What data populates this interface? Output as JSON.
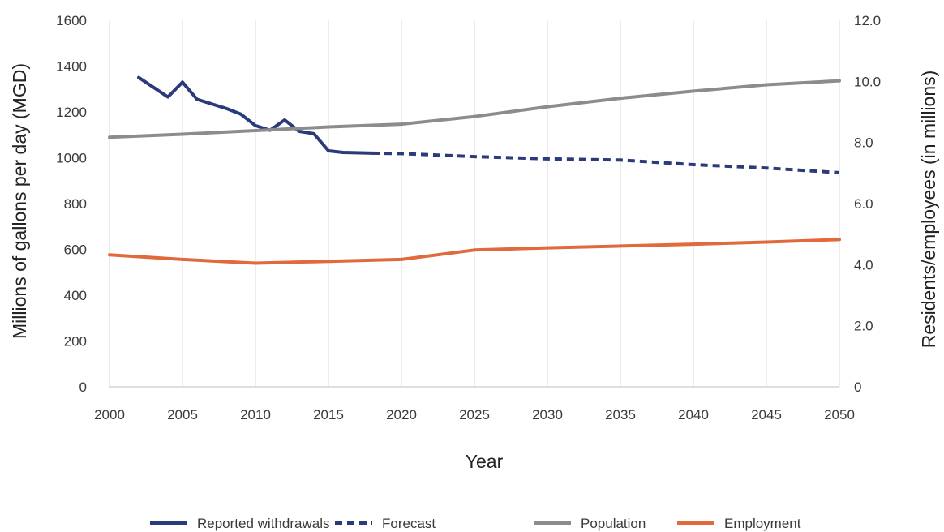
{
  "chart_data": {
    "type": "line",
    "xlabel": "Year",
    "ylabel_left": "Millions of gallons per day (MGD)",
    "ylabel_right": "Residents/employees (in millions)",
    "xlim": [
      2000,
      2050
    ],
    "ylim_left": [
      0,
      1600
    ],
    "ylim_right": [
      0,
      12
    ],
    "x_ticks": [
      "2000",
      "2005",
      "2010",
      "2015",
      "2020",
      "2025",
      "2030",
      "2035",
      "2040",
      "2045",
      "2050"
    ],
    "y_left_ticks": [
      "0",
      "200",
      "400",
      "600",
      "800",
      "1000",
      "1200",
      "1400",
      "1600"
    ],
    "y_right_ticks": [
      "0",
      "2.0",
      "4.0",
      "6.0",
      "8.0",
      "10.0",
      "12.0"
    ],
    "grid": "vertical",
    "legend_position": "bottom",
    "series": [
      {
        "name": "Reported withdrawals",
        "axis": "left",
        "style": "solid",
        "color": "#2b3a7a",
        "points": [
          [
            2002,
            1350
          ],
          [
            2004,
            1265
          ],
          [
            2005,
            1330
          ],
          [
            2006,
            1255
          ],
          [
            2008,
            1215
          ],
          [
            2009,
            1190
          ],
          [
            2010,
            1140
          ],
          [
            2011,
            1120
          ],
          [
            2012,
            1165
          ],
          [
            2013,
            1115
          ],
          [
            2014,
            1105
          ],
          [
            2015,
            1030
          ],
          [
            2016,
            1023
          ],
          [
            2018,
            1020
          ]
        ]
      },
      {
        "name": "Forecast",
        "axis": "left",
        "style": "dashed",
        "color": "#2b3a7a",
        "points": [
          [
            2018,
            1020
          ],
          [
            2020,
            1018
          ],
          [
            2025,
            1005
          ],
          [
            2030,
            995
          ],
          [
            2035,
            990
          ],
          [
            2040,
            970
          ],
          [
            2045,
            955
          ],
          [
            2050,
            935
          ]
        ]
      },
      {
        "name": "Population",
        "axis": "right",
        "style": "solid",
        "color": "#8c8c8c",
        "points": [
          [
            2000,
            8.17
          ],
          [
            2005,
            8.27
          ],
          [
            2010,
            8.39
          ],
          [
            2015,
            8.51
          ],
          [
            2020,
            8.6
          ],
          [
            2025,
            8.85
          ],
          [
            2030,
            9.17
          ],
          [
            2035,
            9.45
          ],
          [
            2040,
            9.68
          ],
          [
            2045,
            9.89
          ],
          [
            2050,
            10.02
          ]
        ]
      },
      {
        "name": "Employment",
        "axis": "right",
        "style": "solid",
        "color": "#e06a3c",
        "points": [
          [
            2000,
            4.32
          ],
          [
            2005,
            4.17
          ],
          [
            2010,
            4.05
          ],
          [
            2015,
            4.11
          ],
          [
            2020,
            4.17
          ],
          [
            2025,
            4.48
          ],
          [
            2030,
            4.55
          ],
          [
            2035,
            4.61
          ],
          [
            2040,
            4.67
          ],
          [
            2045,
            4.74
          ],
          [
            2050,
            4.82
          ]
        ]
      }
    ]
  }
}
